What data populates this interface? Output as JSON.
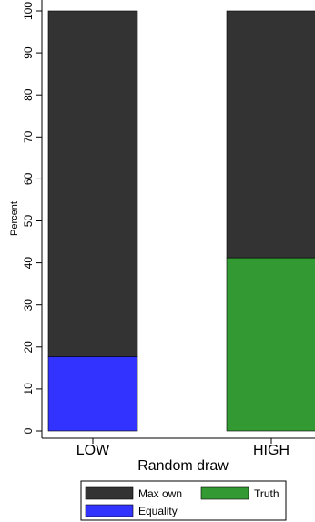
{
  "chart_data": {
    "type": "bar",
    "stacked": true,
    "xlabel": "Random draw",
    "ylabel": "Percent",
    "ylim": [
      0,
      100
    ],
    "yticks": [
      0,
      10,
      20,
      30,
      40,
      50,
      60,
      70,
      80,
      90,
      100
    ],
    "categories": [
      "LOW",
      "HIGH"
    ],
    "segments": [
      [
        {
          "label": "Equality",
          "value": 17.7,
          "color": "#3333ff"
        },
        {
          "label": "Max own",
          "value": 82.3,
          "color": "#333333"
        }
      ],
      [
        {
          "label": "Truth",
          "value": 41.2,
          "color": "#339933"
        },
        {
          "label": "Max own",
          "value": 58.8,
          "color": "#333333"
        }
      ]
    ],
    "legend": [
      {
        "label": "Max own",
        "color": "#333333"
      },
      {
        "label": "Truth",
        "color": "#339933"
      },
      {
        "label": "Equality",
        "color": "#3333ff"
      }
    ],
    "legend_position": "bottom",
    "grid": false
  }
}
